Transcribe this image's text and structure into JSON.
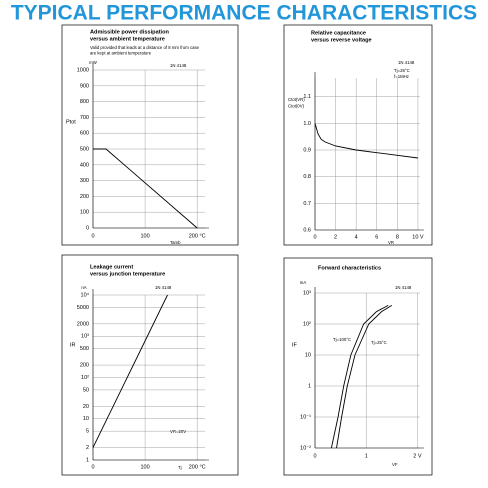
{
  "header": {
    "title": "TYPICAL PERFORMANCE CHARACTERISTICS"
  },
  "chart_data": [
    {
      "type": "line",
      "title": "Admissible power dissipation",
      "subtitle": "versus ambient temperature",
      "note": [
        "Valid provided that leads at a distance of 8 mm from case",
        "are kept at ambient temperature"
      ],
      "part": "1N 4148",
      "y_unit": "mW",
      "y_label": "Ptot",
      "x_label": "Tamb",
      "xlim": [
        0,
        215
      ],
      "xticks": [
        0,
        100,
        {
          "value": 200,
          "label": "200 °C"
        }
      ],
      "ylim": [
        0,
        1000
      ],
      "yticks": [
        0,
        100,
        200,
        300,
        400,
        500,
        600,
        700,
        800,
        900,
        1000
      ],
      "grid": true,
      "series": [
        {
          "name": "Ptot",
          "color": "#000000",
          "x": [
            0,
            25,
            200
          ],
          "values": [
            500,
            500,
            0
          ]
        }
      ]
    },
    {
      "type": "line",
      "title": "Relative capacitance",
      "subtitle": "versus reverse voltage",
      "part": "1N 4148",
      "annotations": [
        "Tj=25°C",
        "f=1MHz"
      ],
      "y_label": [
        "Ctot(VR)",
        "Ctot(0V)"
      ],
      "x_label": "VR",
      "xlim": [
        0,
        10.2
      ],
      "xticks": [
        0,
        2,
        4,
        6,
        8,
        {
          "value": 10,
          "label": "10 V"
        }
      ],
      "ylim": [
        0.6,
        1.17
      ],
      "yticks": [
        0.6,
        0.7,
        0.8,
        0.9,
        {
          "value": 1,
          "label": "1.0"
        },
        1.1
      ],
      "grid": true,
      "series": [
        {
          "name": "Ctot",
          "color": "#000000",
          "x": [
            0,
            0.3,
            0.6,
            1,
            2,
            4,
            6,
            8,
            10
          ],
          "values": [
            1.0,
            0.96,
            0.94,
            0.93,
            0.915,
            0.9,
            0.89,
            0.88,
            0.87
          ]
        }
      ]
    },
    {
      "type": "line",
      "title": "Leakage current",
      "subtitle": "versus junction temperature",
      "part": "1N 4148",
      "annotations": [
        "VR=20V"
      ],
      "y_unit": "nA",
      "y_label": "IR",
      "x_label": "Tj",
      "log_y": true,
      "xlim": [
        0,
        215
      ],
      "xticks": [
        0,
        100,
        {
          "value": 200,
          "label": "200 °C"
        }
      ],
      "ylim": [
        1,
        10000
      ],
      "yticks": [
        1,
        2,
        5,
        10,
        20,
        50,
        {
          "value": 100,
          "label": "10²"
        },
        200,
        500,
        {
          "value": 1000,
          "label": "10³"
        },
        2000,
        5000,
        {
          "value": 10000,
          "label": "10⁴"
        }
      ],
      "grid": true,
      "series": [
        {
          "name": "IR",
          "color": "#000000",
          "x": [
            0,
            143
          ],
          "values": [
            2,
            10000
          ]
        }
      ]
    },
    {
      "type": "line",
      "title": "Forward characteristics",
      "part": "1N 4148",
      "annotations": [
        "Tj=100°C",
        "Tj=25°C"
      ],
      "y_unit": "mA",
      "y_label": "IF",
      "x_label": "VF",
      "log_y": true,
      "xlim": [
        0,
        2.05
      ],
      "xticks": [
        0,
        1,
        {
          "value": 2,
          "label": "2 V"
        }
      ],
      "ylim": [
        0.01,
        1000
      ],
      "yticks": [
        {
          "value": 0.01,
          "label": "10⁻²"
        },
        {
          "value": 0.1,
          "label": "10⁻¹"
        },
        1,
        10,
        {
          "value": 100,
          "label": "10²"
        },
        {
          "value": 1000,
          "label": "10³"
        }
      ],
      "grid": true,
      "series": [
        {
          "name": "Tj=100°C",
          "color": "#000000",
          "x": [
            0.32,
            0.45,
            0.56,
            0.7,
            0.95,
            1.2,
            1.43
          ],
          "values": [
            0.01,
            0.1,
            1,
            10,
            100,
            250,
            400
          ]
        },
        {
          "name": "Tj=25°C",
          "color": "#000000",
          "x": [
            0.42,
            0.52,
            0.63,
            0.78,
            1.05,
            1.3,
            1.5
          ],
          "values": [
            0.01,
            0.1,
            1,
            10,
            100,
            250,
            400
          ]
        }
      ]
    }
  ]
}
